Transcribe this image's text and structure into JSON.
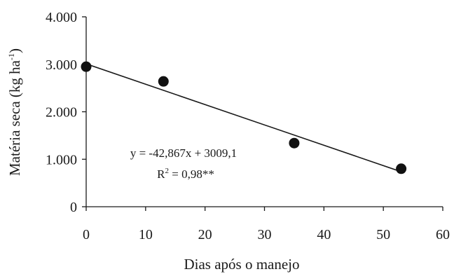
{
  "chart_data": {
    "type": "scatter",
    "title": "",
    "xlabel": "Dias após o manejo",
    "ylabel_main": "Matéria seca (kg ha",
    "ylabel_sup": "-1",
    "ylabel_close": ")",
    "xlim": [
      0,
      60
    ],
    "ylim": [
      0,
      4000
    ],
    "x_ticks": [
      0,
      10,
      20,
      30,
      40,
      50,
      60
    ],
    "x_tick_labels": [
      "0",
      "10",
      "20",
      "30",
      "40",
      "50",
      "60"
    ],
    "y_ticks": [
      0,
      1000,
      2000,
      3000,
      4000
    ],
    "y_tick_labels": [
      "0",
      "1.000",
      "2.000",
      "3.000",
      "4.000"
    ],
    "series": [
      {
        "points": [
          {
            "x": 0,
            "y": 2950
          },
          {
            "x": 13,
            "y": 2640
          },
          {
            "x": 35,
            "y": 1340
          },
          {
            "x": 53,
            "y": 800
          }
        ]
      }
    ],
    "trendline": {
      "slope": -42.867,
      "intercept": 3009.1,
      "x_range": [
        0,
        53
      ]
    },
    "annotation": {
      "equation": "y = -42,867x + 3009,1",
      "r2_prefix": "R",
      "r2_sup": "2",
      "r2_suffix": " = 0,98**"
    },
    "grid": false,
    "legend": "none"
  }
}
